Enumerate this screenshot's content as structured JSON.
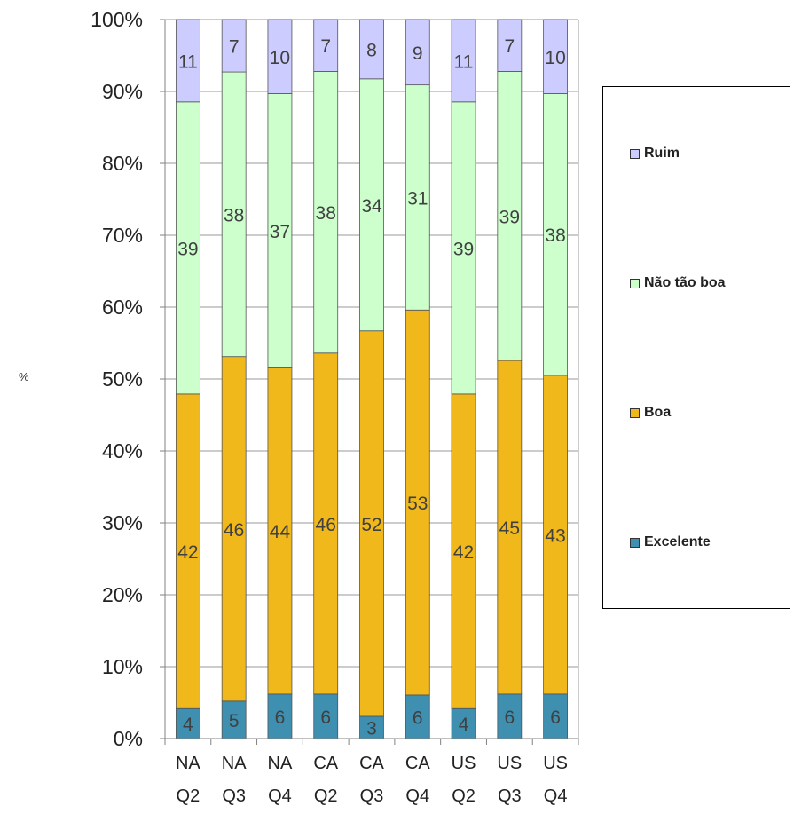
{
  "chart_data": {
    "type": "bar",
    "stacked": "percent",
    "ylabel": "%",
    "ylim": [
      0,
      100
    ],
    "yticks": [
      "0%",
      "10%",
      "20%",
      "30%",
      "40%",
      "50%",
      "60%",
      "70%",
      "80%",
      "90%",
      "100%"
    ],
    "categories": [
      {
        "line1": "NA",
        "line2": "Q2"
      },
      {
        "line1": "NA",
        "line2": "Q3"
      },
      {
        "line1": "NA",
        "line2": "Q4"
      },
      {
        "line1": "CA",
        "line2": "Q2"
      },
      {
        "line1": "CA",
        "line2": "Q3"
      },
      {
        "line1": "CA",
        "line2": "Q4"
      },
      {
        "line1": "US",
        "line2": "Q2"
      },
      {
        "line1": "US",
        "line2": "Q3"
      },
      {
        "line1": "US",
        "line2": "Q4"
      }
    ],
    "series": [
      {
        "name": "Excelente",
        "color": "#3f8fb0",
        "values": [
          4,
          5,
          6,
          6,
          3,
          6,
          4,
          6,
          6
        ]
      },
      {
        "name": "Boa",
        "color": "#f1b81b",
        "values": [
          42,
          46,
          44,
          46,
          52,
          53,
          42,
          45,
          43
        ]
      },
      {
        "name": "Não tão boa",
        "color": "#ccffcc",
        "values": [
          39,
          38,
          37,
          38,
          34,
          31,
          39,
          39,
          38
        ]
      },
      {
        "name": "Ruim",
        "color": "#ccccff",
        "values": [
          11,
          7,
          10,
          7,
          8,
          9,
          11,
          7,
          10
        ]
      }
    ],
    "grid": true,
    "legend_position": "right"
  }
}
